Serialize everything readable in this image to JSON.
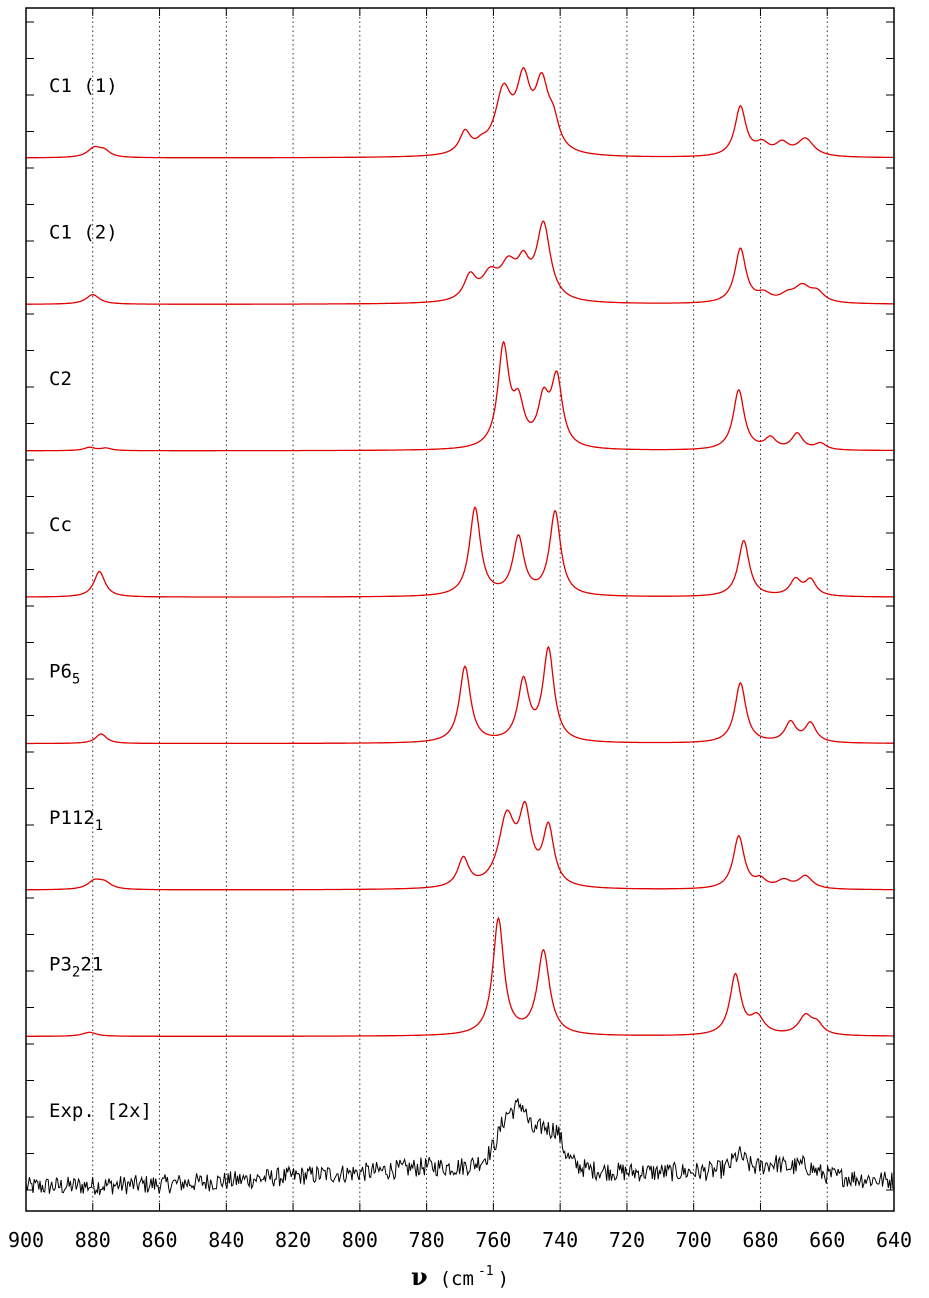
{
  "chart_data": {
    "type": "line",
    "title": "",
    "xlabel": "ν (cm⁻¹)",
    "xlabel_parts": {
      "symbol": "ν",
      "unit_open": "(cm",
      "unit_exp": "-1",
      "unit_close": ")"
    },
    "ylabel": "",
    "xlim": [
      900,
      640
    ],
    "x_reversed": true,
    "xticks": [
      900,
      880,
      860,
      840,
      820,
      800,
      780,
      760,
      740,
      720,
      700,
      680,
      660,
      640
    ],
    "xtick_labels": [
      "900",
      "880",
      "860",
      "840",
      "820",
      "800",
      "780",
      "760",
      "740",
      "720",
      "700",
      "680",
      "660",
      "640"
    ],
    "grid": {
      "vertical_dotted": true,
      "horizontal": false
    },
    "stacked_offset_panels": true,
    "series": [
      {
        "name": "C1 (1)",
        "label_parts": {
          "base": "C1 (1)",
          "sub": "",
          "tail": ""
        },
        "color": "#e00000",
        "peaks": [
          {
            "center": 879.5,
            "height": 0.12,
            "width": 2.5
          },
          {
            "center": 876.5,
            "height": 0.07,
            "width": 2.0
          },
          {
            "center": 768.5,
            "height": 0.27,
            "width": 2.0
          },
          {
            "center": 763.5,
            "height": 0.08,
            "width": 2.0
          },
          {
            "center": 757.0,
            "height": 0.75,
            "width": 3.0
          },
          {
            "center": 751.0,
            "height": 0.82,
            "width": 2.5
          },
          {
            "center": 745.5,
            "height": 0.8,
            "width": 2.5
          },
          {
            "center": 742.0,
            "height": 0.3,
            "width": 2.0
          },
          {
            "center": 686.0,
            "height": 0.62,
            "width": 2.0
          },
          {
            "center": 679.5,
            "height": 0.14,
            "width": 2.5
          },
          {
            "center": 673.5,
            "height": 0.15,
            "width": 2.5
          },
          {
            "center": 666.5,
            "height": 0.22,
            "width": 3.0
          }
        ]
      },
      {
        "name": "C1 (2)",
        "label_parts": {
          "base": "C1 (2)",
          "sub": "",
          "tail": ""
        },
        "color": "#e00000",
        "peaks": [
          {
            "center": 880.0,
            "height": 0.12,
            "width": 2.5
          },
          {
            "center": 767.0,
            "height": 0.3,
            "width": 2.2
          },
          {
            "center": 761.0,
            "height": 0.3,
            "width": 3.0
          },
          {
            "center": 755.5,
            "height": 0.4,
            "width": 3.0
          },
          {
            "center": 751.0,
            "height": 0.38,
            "width": 2.2
          },
          {
            "center": 745.0,
            "height": 0.95,
            "width": 2.5
          },
          {
            "center": 686.0,
            "height": 0.68,
            "width": 2.0
          },
          {
            "center": 679.0,
            "height": 0.1,
            "width": 2.5
          },
          {
            "center": 672.0,
            "height": 0.08,
            "width": 2.5
          },
          {
            "center": 667.5,
            "height": 0.2,
            "width": 3.0
          },
          {
            "center": 663.0,
            "height": 0.12,
            "width": 2.5
          }
        ]
      },
      {
        "name": "C2",
        "label_parts": {
          "base": "C2",
          "sub": "",
          "tail": ""
        },
        "color": "#e00000",
        "peaks": [
          {
            "center": 881.0,
            "height": 0.04,
            "width": 2.0
          },
          {
            "center": 876.0,
            "height": 0.03,
            "width": 2.0
          },
          {
            "center": 757.0,
            "height": 1.25,
            "width": 2.0
          },
          {
            "center": 752.5,
            "height": 0.5,
            "width": 2.0
          },
          {
            "center": 745.0,
            "height": 0.55,
            "width": 2.0
          },
          {
            "center": 741.0,
            "height": 0.85,
            "width": 2.0
          },
          {
            "center": 686.5,
            "height": 0.75,
            "width": 2.0
          },
          {
            "center": 677.0,
            "height": 0.14,
            "width": 2.0
          },
          {
            "center": 669.0,
            "height": 0.2,
            "width": 2.0
          },
          {
            "center": 662.0,
            "height": 0.08,
            "width": 2.0
          }
        ]
      },
      {
        "name": "Cc",
        "label_parts": {
          "base": "Cc",
          "sub": "",
          "tail": ""
        },
        "color": "#e00000",
        "peaks": [
          {
            "center": 878.0,
            "height": 0.32,
            "width": 2.0
          },
          {
            "center": 765.5,
            "height": 1.1,
            "width": 2.0
          },
          {
            "center": 752.5,
            "height": 0.72,
            "width": 2.0
          },
          {
            "center": 741.5,
            "height": 1.05,
            "width": 2.0
          },
          {
            "center": 685.0,
            "height": 0.7,
            "width": 2.0
          },
          {
            "center": 669.5,
            "height": 0.2,
            "width": 2.0
          },
          {
            "center": 665.0,
            "height": 0.2,
            "width": 2.0
          }
        ]
      },
      {
        "name": "P6",
        "label_parts": {
          "base": "P6",
          "sub": "5",
          "tail": ""
        },
        "color": "#e00000",
        "peaks": [
          {
            "center": 877.5,
            "height": 0.12,
            "width": 2.0
          },
          {
            "center": 768.5,
            "height": 0.95,
            "width": 2.0
          },
          {
            "center": 751.0,
            "height": 0.75,
            "width": 2.0
          },
          {
            "center": 743.5,
            "height": 1.15,
            "width": 2.0
          },
          {
            "center": 686.0,
            "height": 0.75,
            "width": 2.0
          },
          {
            "center": 671.0,
            "height": 0.25,
            "width": 2.0
          },
          {
            "center": 665.0,
            "height": 0.24,
            "width": 2.0
          }
        ]
      },
      {
        "name": "P112",
        "label_parts": {
          "base": "P112",
          "sub": "1",
          "tail": ""
        },
        "color": "#e00000",
        "peaks": [
          {
            "center": 879.5,
            "height": 0.1,
            "width": 2.5
          },
          {
            "center": 876.5,
            "height": 0.08,
            "width": 2.5
          },
          {
            "center": 769.0,
            "height": 0.36,
            "width": 2.0
          },
          {
            "center": 756.0,
            "height": 0.85,
            "width": 3.0
          },
          {
            "center": 750.5,
            "height": 0.85,
            "width": 2.2
          },
          {
            "center": 743.5,
            "height": 0.72,
            "width": 2.0
          },
          {
            "center": 686.5,
            "height": 0.66,
            "width": 2.0
          },
          {
            "center": 680.0,
            "height": 0.1,
            "width": 2.0
          },
          {
            "center": 673.0,
            "height": 0.1,
            "width": 2.5
          },
          {
            "center": 666.5,
            "height": 0.16,
            "width": 2.5
          }
        ]
      },
      {
        "name": "P3",
        "label_parts": {
          "base": "P3",
          "sub": "2",
          "tail": "21"
        },
        "color": "#e00000",
        "peaks": [
          {
            "center": 881.0,
            "height": 0.05,
            "width": 2.5
          },
          {
            "center": 758.5,
            "height": 1.45,
            "width": 2.0
          },
          {
            "center": 745.0,
            "height": 1.05,
            "width": 2.2
          },
          {
            "center": 687.5,
            "height": 0.75,
            "width": 2.0
          },
          {
            "center": 681.0,
            "height": 0.22,
            "width": 2.5
          },
          {
            "center": 666.5,
            "height": 0.24,
            "width": 2.5
          },
          {
            "center": 663.0,
            "height": 0.12,
            "width": 2.0
          }
        ]
      },
      {
        "name": "Exp. [2x]",
        "label_parts": {
          "base": "Exp. [2x]",
          "sub": "",
          "tail": ""
        },
        "color": "#000000",
        "experimental": true,
        "noise_amplitude": 0.12,
        "baseline_drift": [
          [
            900,
            -0.05
          ],
          [
            860,
            -0.02
          ],
          [
            840,
            0.02
          ],
          [
            820,
            0.08
          ],
          [
            800,
            0.12
          ],
          [
            780,
            0.18
          ],
          [
            760,
            0.1
          ],
          [
            740,
            0.1
          ],
          [
            700,
            0.12
          ],
          [
            680,
            0.1
          ],
          [
            640,
            0.02
          ]
        ],
        "peaks": [
          {
            "center": 756.0,
            "height": 0.55,
            "width": 4.0
          },
          {
            "center": 751.5,
            "height": 0.55,
            "width": 3.0
          },
          {
            "center": 745.0,
            "height": 0.35,
            "width": 3.0
          },
          {
            "center": 741.0,
            "height": 0.35,
            "width": 2.5
          },
          {
            "center": 686.5,
            "height": 0.22,
            "width": 2.5
          },
          {
            "center": 676.0,
            "height": 0.12,
            "width": 4.0
          },
          {
            "center": 667.0,
            "height": 0.12,
            "width": 4.0
          }
        ]
      }
    ]
  }
}
